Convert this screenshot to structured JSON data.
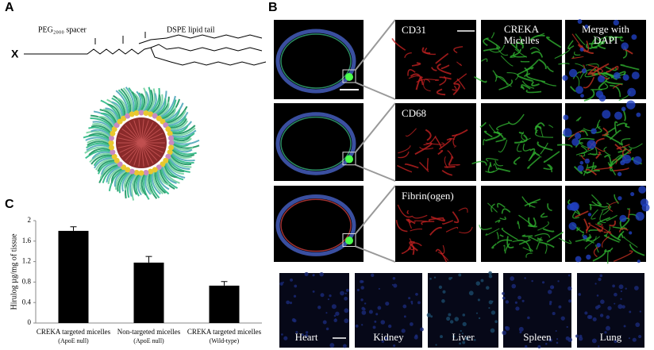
{
  "figure": {
    "panels": {
      "a": "A",
      "b": "B",
      "c": "C"
    },
    "molecule": {
      "end_group": "X",
      "spacer": "PEG₂₀₀₀ spacer",
      "tail": "DSPE lipid tail"
    },
    "imaging": {
      "rows": [
        "CD31",
        "CD68",
        "Fibrin(ogen)"
      ],
      "columns": [
        [
          "CREKA",
          "Micelles"
        ],
        [
          "Merge with",
          "DAPI"
        ]
      ],
      "organs": [
        "Heart",
        "Kidney",
        "Liver",
        "Spleen",
        "Lung"
      ]
    }
  },
  "chart_data": {
    "type": "bar",
    "y_label": "Hirulog µg/mg of tissue",
    "categories": [
      [
        "CREKA targeted micelles",
        "(ApoE null)"
      ],
      [
        "Non-targeted micelles",
        "(ApoE null)"
      ],
      [
        "CREKA targeted micelles",
        "(Wild-type)"
      ]
    ],
    "values": [
      1.8,
      1.18,
      0.73
    ],
    "errors": [
      0.08,
      0.12,
      0.08
    ],
    "color": "#000000",
    "ylim": [
      0,
      2
    ],
    "yticks": [
      0,
      0.4,
      0.8,
      1.2,
      1.6,
      2
    ],
    "grid": false
  }
}
